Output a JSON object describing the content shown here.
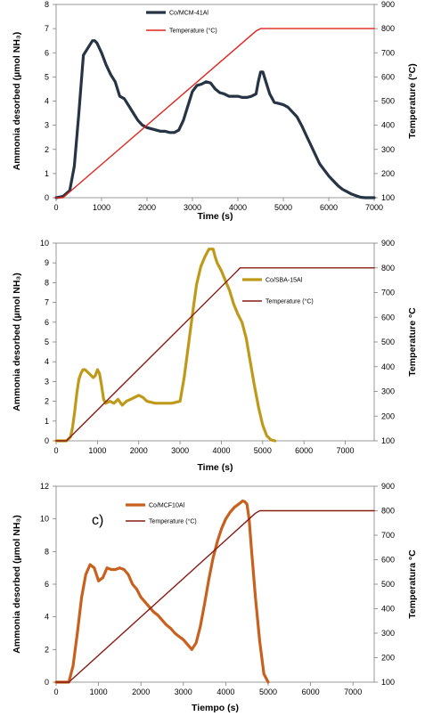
{
  "chart_data": [
    {
      "type": "line",
      "panel_label": "",
      "xlabel": "Time (s)",
      "ylabel_left": "Ammonia desorbed (µmol NH₃)",
      "ylabel_left_sub": "3",
      "ylabel_right": "Temperature (°C)",
      "xlim": [
        0,
        7000
      ],
      "xticks": [
        0,
        1000,
        2000,
        3000,
        4000,
        5000,
        6000,
        7000
      ],
      "ylim_left": [
        0,
        8
      ],
      "yticks_left": [
        0,
        1,
        2,
        3,
        4,
        5,
        6,
        7,
        8
      ],
      "ylim_right": [
        100,
        900
      ],
      "yticks_right": [
        100,
        200,
        300,
        400,
        500,
        600,
        700,
        800,
        900
      ],
      "legend_position": "top-center",
      "series": [
        {
          "name": "Co/MCM-41Al",
          "color": "#263445",
          "axis": "left",
          "x": [
            0,
            150,
            300,
            400,
            500,
            600,
            700,
            800,
            850,
            900,
            1000,
            1100,
            1200,
            1300,
            1400,
            1500,
            1600,
            1700,
            1800,
            1900,
            2000,
            2100,
            2200,
            2300,
            2400,
            2500,
            2600,
            2700,
            2800,
            2900,
            3000,
            3100,
            3200,
            3300,
            3400,
            3500,
            3600,
            3700,
            3800,
            3900,
            4000,
            4100,
            4200,
            4300,
            4400,
            4450,
            4500,
            4550,
            4600,
            4700,
            4800,
            4900,
            5000,
            5100,
            5200,
            5300,
            5400,
            5500,
            5600,
            5700,
            5800,
            5900,
            6000,
            6100,
            6200,
            6300,
            6400,
            6500,
            6600,
            6700,
            6800,
            6900,
            7000
          ],
          "y": [
            0,
            0.05,
            0.3,
            1.3,
            3.5,
            5.9,
            6.2,
            6.5,
            6.5,
            6.4,
            6.0,
            5.5,
            5.1,
            4.8,
            4.2,
            4.1,
            3.8,
            3.5,
            3.2,
            3.0,
            2.9,
            2.85,
            2.8,
            2.75,
            2.75,
            2.7,
            2.7,
            2.8,
            3.2,
            3.8,
            4.4,
            4.65,
            4.7,
            4.8,
            4.75,
            4.5,
            4.35,
            4.3,
            4.2,
            4.2,
            4.2,
            4.15,
            4.15,
            4.2,
            4.3,
            4.8,
            5.2,
            5.2,
            4.9,
            4.3,
            3.95,
            3.9,
            3.85,
            3.75,
            3.55,
            3.35,
            3.0,
            2.6,
            2.2,
            1.8,
            1.4,
            1.15,
            0.9,
            0.7,
            0.5,
            0.35,
            0.25,
            0.15,
            0.08,
            0.02,
            0,
            0,
            0
          ]
        },
        {
          "name": "Temperature (°C)",
          "color": "#e0231b",
          "axis": "right",
          "x": [
            0,
            150,
            4400,
            4500,
            7000
          ],
          "y": [
            100,
            100,
            790,
            800,
            800
          ]
        }
      ]
    },
    {
      "type": "line",
      "panel_label": "",
      "xlabel": "Time (s)",
      "ylabel_left": "Ammonia desorbed  (µmol NH₃)",
      "ylabel_left_sub": "3",
      "ylabel_right": "Temperature °C",
      "xlim": [
        0,
        7700
      ],
      "xticks": [
        0,
        1000,
        2000,
        3000,
        4000,
        5000,
        6000,
        7000
      ],
      "ylim_left": [
        0,
        10
      ],
      "yticks_left": [
        0,
        1,
        2,
        3,
        4,
        5,
        6,
        7,
        8,
        9,
        10
      ],
      "ylim_right": [
        100,
        900
      ],
      "yticks_right": [
        100,
        200,
        300,
        400,
        500,
        600,
        700,
        800,
        900
      ],
      "legend_position": "top-right",
      "series": [
        {
          "name": "Co/SBA-15Al",
          "color": "#bf9a1a",
          "axis": "left",
          "x": [
            0,
            250,
            350,
            400,
            450,
            500,
            550,
            600,
            650,
            700,
            800,
            900,
            950,
            1000,
            1050,
            1100,
            1150,
            1200,
            1300,
            1400,
            1500,
            1600,
            1700,
            1800,
            1900,
            2000,
            2100,
            2200,
            2300,
            2400,
            2600,
            2800,
            3000,
            3100,
            3200,
            3300,
            3400,
            3500,
            3600,
            3700,
            3800,
            3850,
            3900,
            4000,
            4100,
            4200,
            4300,
            4400,
            4500,
            4600,
            4700,
            4800,
            4900,
            5000,
            5100,
            5200,
            5300
          ],
          "y": [
            0,
            0,
            0.2,
            0.7,
            1.5,
            2.4,
            3.1,
            3.4,
            3.6,
            3.6,
            3.4,
            3.2,
            3.3,
            3.6,
            3.4,
            2.8,
            2.1,
            1.9,
            2.0,
            1.9,
            2.1,
            1.8,
            2.0,
            2.1,
            2.2,
            2.3,
            2.2,
            2.0,
            1.95,
            1.9,
            1.9,
            1.9,
            2.0,
            3.2,
            4.8,
            6.4,
            7.9,
            8.8,
            9.3,
            9.7,
            9.7,
            9.3,
            9.0,
            8.6,
            8.1,
            7.6,
            6.9,
            6.4,
            6.0,
            5.2,
            4.0,
            2.8,
            1.7,
            0.8,
            0.25,
            0.05,
            0
          ]
        },
        {
          "name": "Temperature (°C)",
          "color": "#8a1b14",
          "axis": "right",
          "x": [
            0,
            250,
            4400,
            4450,
            7700
          ],
          "y": [
            100,
            100,
            790,
            800,
            800
          ]
        }
      ]
    },
    {
      "type": "line",
      "panel_label": "c)",
      "xlabel": "Tiempo (s)",
      "ylabel_left": "Ammonia desorbed  (µmol NH₃)",
      "ylabel_left_sub": "3",
      "ylabel_right": "Temperatura °C",
      "xlim": [
        0,
        7500
      ],
      "xticks": [
        0,
        1000,
        2000,
        3000,
        4000,
        5000,
        6000,
        7000
      ],
      "ylim_left": [
        0,
        12
      ],
      "yticks_left": [
        0,
        2,
        4,
        6,
        8,
        10,
        12
      ],
      "ylim_right": [
        100,
        900
      ],
      "yticks_right": [
        100,
        200,
        300,
        400,
        500,
        600,
        700,
        800,
        900
      ],
      "legend_position": "top-center",
      "series": [
        {
          "name": "Co/MCF10Al",
          "color": "#c8611f",
          "axis": "left",
          "x": [
            0,
            300,
            400,
            500,
            600,
            700,
            800,
            900,
            1000,
            1100,
            1200,
            1300,
            1400,
            1500,
            1600,
            1700,
            1800,
            1900,
            2000,
            2100,
            2200,
            2300,
            2400,
            2500,
            2600,
            2700,
            2800,
            2900,
            3000,
            3100,
            3200,
            3300,
            3400,
            3500,
            3600,
            3700,
            3800,
            3900,
            4000,
            4100,
            4200,
            4300,
            4400,
            4450,
            4500,
            4550,
            4600,
            4700,
            4800,
            4900,
            5000
          ],
          "y": [
            0,
            0,
            1.0,
            3.0,
            5.2,
            6.6,
            7.2,
            7.0,
            6.2,
            6.4,
            7.0,
            6.9,
            6.9,
            7.0,
            6.9,
            6.6,
            6.0,
            5.7,
            5.2,
            4.9,
            4.6,
            4.3,
            4.1,
            3.8,
            3.5,
            3.3,
            3.0,
            2.8,
            2.6,
            2.3,
            2.0,
            2.4,
            3.4,
            4.8,
            6.3,
            7.6,
            8.6,
            9.4,
            10.0,
            10.4,
            10.7,
            10.9,
            11.1,
            11.05,
            10.9,
            10.0,
            8.3,
            5.2,
            2.5,
            0.5,
            0
          ]
        },
        {
          "name": "Temperature (°C)",
          "color": "#8a1b14",
          "axis": "right",
          "x": [
            0,
            300,
            4700,
            4800,
            7500
          ],
          "y": [
            100,
            100,
            790,
            800,
            800
          ]
        }
      ]
    }
  ]
}
